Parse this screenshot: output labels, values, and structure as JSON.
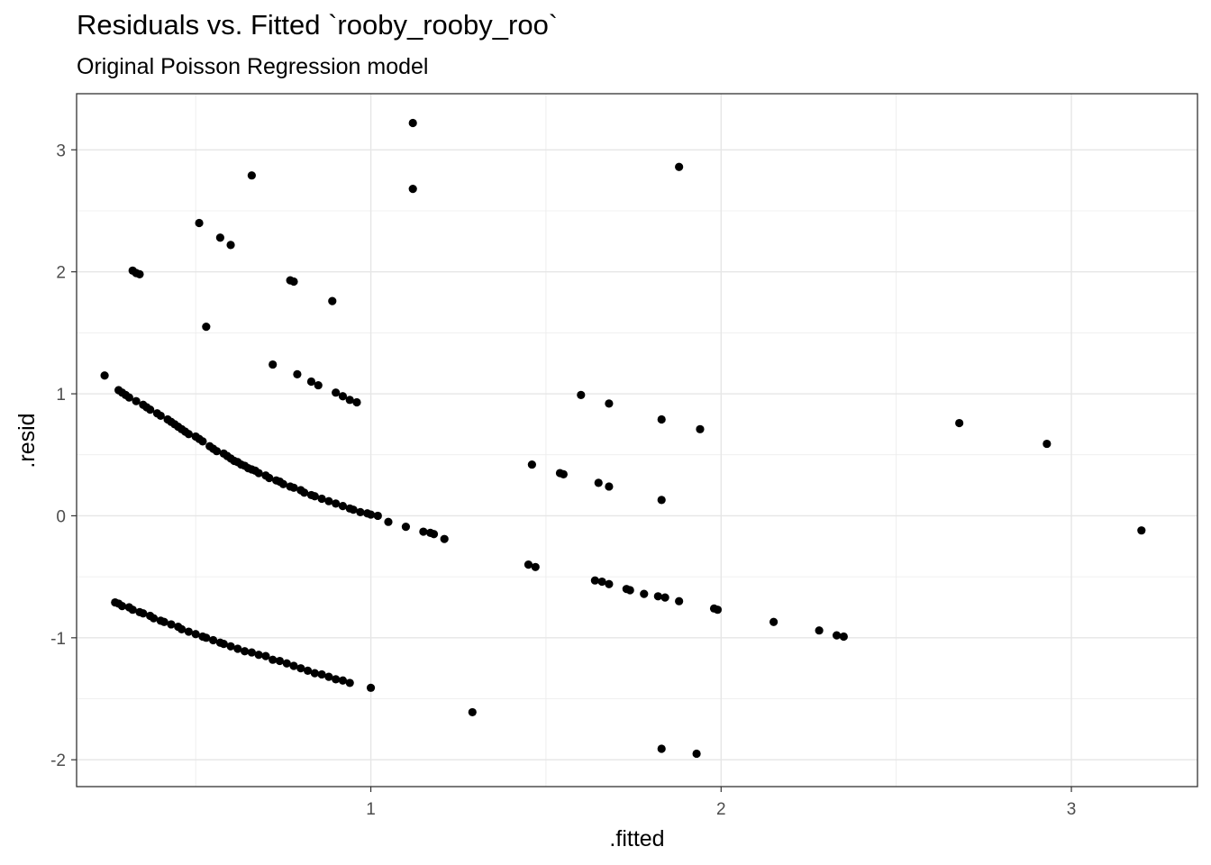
{
  "chart_data": {
    "type": "scatter",
    "title": "Residuals vs. Fitted `rooby_rooby_roo`",
    "subtitle": "Original Poisson Regression model",
    "xlabel": ".fitted",
    "ylabel": ".resid",
    "xlim": [
      0.16,
      3.36
    ],
    "ylim": [
      -2.22,
      3.46
    ],
    "xticks": [
      1,
      2,
      3
    ],
    "xtick_labels": [
      "1",
      "2",
      "3"
    ],
    "yticks": [
      -2,
      -1,
      0,
      1,
      2,
      3
    ],
    "ytick_labels": [
      "-2",
      "-1",
      "0",
      "1",
      "2",
      "3"
    ],
    "grid": true,
    "point_color": "#000000",
    "points": [
      [
        1.12,
        3.22
      ],
      [
        1.12,
        2.68
      ],
      [
        1.88,
        2.86
      ],
      [
        0.66,
        2.79
      ],
      [
        0.51,
        2.4
      ],
      [
        0.57,
        2.28
      ],
      [
        0.6,
        2.22
      ],
      [
        0.32,
        2.01
      ],
      [
        0.33,
        1.99
      ],
      [
        0.34,
        1.98
      ],
      [
        0.77,
        1.93
      ],
      [
        0.78,
        1.92
      ],
      [
        0.89,
        1.76
      ],
      [
        0.53,
        1.55
      ],
      [
        0.72,
        1.24
      ],
      [
        0.79,
        1.16
      ],
      [
        0.83,
        1.1
      ],
      [
        0.85,
        1.07
      ],
      [
        0.9,
        1.01
      ],
      [
        0.92,
        0.98
      ],
      [
        0.94,
        0.95
      ],
      [
        0.96,
        0.93
      ],
      [
        1.6,
        0.99
      ],
      [
        1.68,
        0.92
      ],
      [
        1.83,
        0.79
      ],
      [
        1.94,
        0.71
      ],
      [
        2.68,
        0.76
      ],
      [
        2.93,
        0.59
      ],
      [
        3.2,
        -0.12
      ],
      [
        1.46,
        0.42
      ],
      [
        1.54,
        0.35
      ],
      [
        1.55,
        0.34
      ],
      [
        1.65,
        0.27
      ],
      [
        1.68,
        0.24
      ],
      [
        1.83,
        0.13
      ],
      [
        1.45,
        -0.4
      ],
      [
        1.47,
        -0.42
      ],
      [
        1.64,
        -0.53
      ],
      [
        1.66,
        -0.54
      ],
      [
        1.68,
        -0.56
      ],
      [
        1.73,
        -0.6
      ],
      [
        1.74,
        -0.61
      ],
      [
        1.78,
        -0.64
      ],
      [
        1.82,
        -0.66
      ],
      [
        1.84,
        -0.67
      ],
      [
        1.88,
        -0.7
      ],
      [
        1.98,
        -0.76
      ],
      [
        1.99,
        -0.77
      ],
      [
        2.15,
        -0.87
      ],
      [
        2.28,
        -0.94
      ],
      [
        2.33,
        -0.98
      ],
      [
        2.35,
        -0.99
      ],
      [
        0.24,
        1.15
      ],
      [
        0.28,
        1.03
      ],
      [
        0.29,
        1.01
      ],
      [
        0.3,
        0.99
      ],
      [
        0.31,
        0.97
      ],
      [
        0.33,
        0.94
      ],
      [
        0.35,
        0.91
      ],
      [
        0.36,
        0.89
      ],
      [
        0.37,
        0.87
      ],
      [
        0.39,
        0.84
      ],
      [
        0.4,
        0.82
      ],
      [
        0.42,
        0.79
      ],
      [
        0.43,
        0.77
      ],
      [
        0.44,
        0.75
      ],
      [
        0.45,
        0.73
      ],
      [
        0.46,
        0.71
      ],
      [
        0.47,
        0.69
      ],
      [
        0.48,
        0.67
      ],
      [
        0.5,
        0.65
      ],
      [
        0.51,
        0.63
      ],
      [
        0.52,
        0.61
      ],
      [
        0.54,
        0.57
      ],
      [
        0.55,
        0.55
      ],
      [
        0.56,
        0.53
      ],
      [
        0.58,
        0.51
      ],
      [
        0.59,
        0.49
      ],
      [
        0.6,
        0.47
      ],
      [
        0.61,
        0.45
      ],
      [
        0.62,
        0.44
      ],
      [
        0.63,
        0.42
      ],
      [
        0.64,
        0.41
      ],
      [
        0.65,
        0.39
      ],
      [
        0.66,
        0.38
      ],
      [
        0.67,
        0.37
      ],
      [
        0.68,
        0.35
      ],
      [
        0.7,
        0.33
      ],
      [
        0.71,
        0.31
      ],
      [
        0.73,
        0.29
      ],
      [
        0.74,
        0.28
      ],
      [
        0.75,
        0.26
      ],
      [
        0.77,
        0.24
      ],
      [
        0.78,
        0.23
      ],
      [
        0.8,
        0.21
      ],
      [
        0.81,
        0.19
      ],
      [
        0.83,
        0.17
      ],
      [
        0.84,
        0.16
      ],
      [
        0.86,
        0.14
      ],
      [
        0.88,
        0.12
      ],
      [
        0.9,
        0.1
      ],
      [
        0.92,
        0.08
      ],
      [
        0.94,
        0.06
      ],
      [
        0.95,
        0.05
      ],
      [
        0.97,
        0.03
      ],
      [
        0.99,
        0.02
      ],
      [
        1.0,
        0.01
      ],
      [
        1.02,
        0.0
      ],
      [
        1.05,
        -0.05
      ],
      [
        1.1,
        -0.09
      ],
      [
        1.15,
        -0.13
      ],
      [
        1.17,
        -0.14
      ],
      [
        1.18,
        -0.15
      ],
      [
        1.21,
        -0.19
      ],
      [
        0.27,
        -0.71
      ],
      [
        0.28,
        -0.72
      ],
      [
        0.29,
        -0.74
      ],
      [
        0.31,
        -0.75
      ],
      [
        0.32,
        -0.77
      ],
      [
        0.34,
        -0.79
      ],
      [
        0.35,
        -0.8
      ],
      [
        0.37,
        -0.82
      ],
      [
        0.38,
        -0.84
      ],
      [
        0.4,
        -0.86
      ],
      [
        0.41,
        -0.87
      ],
      [
        0.43,
        -0.89
      ],
      [
        0.45,
        -0.91
      ],
      [
        0.46,
        -0.93
      ],
      [
        0.48,
        -0.95
      ],
      [
        0.5,
        -0.97
      ],
      [
        0.52,
        -0.99
      ],
      [
        0.53,
        -1.0
      ],
      [
        0.55,
        -1.02
      ],
      [
        0.57,
        -1.04
      ],
      [
        0.58,
        -1.05
      ],
      [
        0.6,
        -1.07
      ],
      [
        0.62,
        -1.09
      ],
      [
        0.64,
        -1.11
      ],
      [
        0.66,
        -1.12
      ],
      [
        0.68,
        -1.14
      ],
      [
        0.7,
        -1.15
      ],
      [
        0.72,
        -1.18
      ],
      [
        0.74,
        -1.19
      ],
      [
        0.76,
        -1.21
      ],
      [
        0.78,
        -1.23
      ],
      [
        0.8,
        -1.25
      ],
      [
        0.82,
        -1.27
      ],
      [
        0.84,
        -1.29
      ],
      [
        0.86,
        -1.3
      ],
      [
        0.88,
        -1.32
      ],
      [
        0.9,
        -1.34
      ],
      [
        0.92,
        -1.35
      ],
      [
        0.94,
        -1.37
      ],
      [
        1.0,
        -1.41
      ],
      [
        1.29,
        -1.61
      ],
      [
        1.83,
        -1.91
      ],
      [
        1.93,
        -1.95
      ]
    ]
  }
}
